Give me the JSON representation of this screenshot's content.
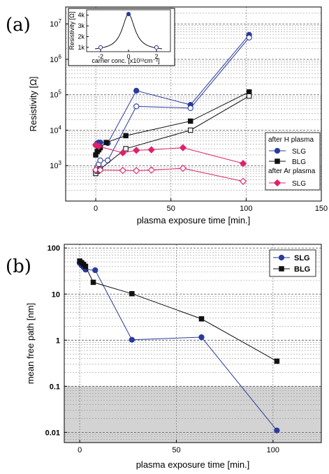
{
  "chart_data": [
    {
      "panel": "(a)",
      "type": "scatter",
      "xlabel": "plasma exposure time [min.]",
      "ylabel": "Resistivity [Ω]",
      "xlim": [
        -20,
        150
      ],
      "ylim": [
        100,
        30000000
      ],
      "yscale": "log",
      "xticks": [
        0,
        50,
        100,
        150
      ],
      "yticks": [
        {
          "v": 1000,
          "label": "10",
          "exp": "3"
        },
        {
          "v": 10000,
          "label": "10",
          "exp": "4"
        },
        {
          "v": 100000,
          "label": "10",
          "exp": "5"
        },
        {
          "v": 1000000,
          "label": "10",
          "exp": "6"
        },
        {
          "v": 10000000,
          "label": "10",
          "exp": "7"
        }
      ],
      "grid": true,
      "legend": {
        "position": "right",
        "group1_title": "after H plasma",
        "group2_title": "after Ar plasma",
        "entries": [
          {
            "label": "SLG",
            "color": "#2a3b9c",
            "marker": "circle"
          },
          {
            "label": "BLG",
            "color": "#111111",
            "marker": "square"
          },
          {
            "label": "SLG",
            "color": "#e0206a",
            "marker": "diamond"
          }
        ]
      },
      "series": [
        {
          "name": "SLG",
          "color": "#2a3b9c",
          "marker": "circle",
          "filled": true,
          "points": [
            [
              0,
              3800
            ],
            [
              1,
              4300
            ],
            [
              2,
              4500
            ],
            [
              3,
              4500
            ],
            [
              8,
              4300
            ],
            [
              27,
              130000
            ],
            [
              63,
              52000
            ],
            [
              102,
              4900000
            ]
          ]
        },
        {
          "name": "SLG",
          "color": "#2a3b9c",
          "marker": "circle",
          "filled": false,
          "points": [
            [
              0,
              700
            ],
            [
              1,
              900
            ],
            [
              2,
              1100
            ],
            [
              3,
              1400
            ],
            [
              8,
              1400
            ],
            [
              27,
              47000
            ],
            [
              63,
              42000
            ],
            [
              102,
              4100000
            ]
          ]
        },
        {
          "name": "BLG",
          "color": "#111111",
          "marker": "square",
          "filled": true,
          "points": [
            [
              0,
              2000
            ],
            [
              1,
              2500
            ],
            [
              2,
              2800
            ],
            [
              3,
              3200
            ],
            [
              7,
              4500
            ],
            [
              20,
              7000
            ],
            [
              63,
              18000
            ],
            [
              102,
              120000
            ]
          ]
        },
        {
          "name": "BLG",
          "color": "#111111",
          "marker": "square",
          "filled": false,
          "points": [
            [
              0,
              600
            ],
            [
              1,
              700
            ],
            [
              2,
              750
            ],
            [
              3,
              800
            ],
            [
              20,
              3000
            ],
            [
              63,
              10000
            ],
            [
              102,
              92000
            ]
          ]
        },
        {
          "name": "SLG",
          "color": "#e0206a",
          "marker": "diamond",
          "filled": true,
          "points": [
            [
              0,
              3800
            ],
            [
              2,
              3500
            ],
            [
              18,
              2300
            ],
            [
              27,
              2700
            ],
            [
              37,
              2800
            ],
            [
              58,
              3200
            ],
            [
              98,
              1150
            ]
          ]
        },
        {
          "name": "SLG",
          "color": "#e0206a",
          "marker": "diamond",
          "filled": false,
          "points": [
            [
              0,
              760
            ],
            [
              3,
              750
            ],
            [
              18,
              730
            ],
            [
              27,
              720
            ],
            [
              37,
              750
            ],
            [
              58,
              840
            ],
            [
              98,
              360
            ]
          ]
        }
      ],
      "inset": {
        "type": "line",
        "xlabel": "carrier conc. [x10¹²cm⁻²]",
        "ylabel": "Resistivity [Ω]",
        "xlim": [
          -3,
          3
        ],
        "ylim": [
          600,
          4500
        ],
        "xticks": [
          "-2",
          "0",
          "2"
        ],
        "yticks": [
          "1k",
          "2k",
          "3k",
          "4k"
        ],
        "curve_color": "#111111",
        "points": [
          {
            "x": -2,
            "y": 1000,
            "marker": "open-circle",
            "color": "#2a3b9c"
          },
          {
            "x": 0,
            "y": 4100,
            "marker": "filled-circle",
            "color": "#2a3b9c"
          },
          {
            "x": 2,
            "y": 1000,
            "marker": "open-circle",
            "color": "#2a3b9c"
          }
        ]
      }
    },
    {
      "panel": "(b)",
      "type": "line",
      "xlabel": "plasma exposure time [min.]",
      "ylabel": "mean free path [nm]",
      "xlim": [
        -8,
        125
      ],
      "ylim": [
        0.006,
        120
      ],
      "yscale": "log",
      "xticks": [
        0,
        50,
        100
      ],
      "yticks": [
        {
          "v": 0.01,
          "label": "0.01"
        },
        {
          "v": 0.1,
          "label": "0.1"
        },
        {
          "v": 1,
          "label": "1"
        },
        {
          "v": 10,
          "label": "10"
        },
        {
          "v": 100,
          "label": "100"
        }
      ],
      "grid": true,
      "shaded_region": {
        "y_from": 0.006,
        "y_to": 0.1,
        "color": "#d3d3d3"
      },
      "legend": {
        "position": "top-right",
        "entries": [
          {
            "label": "SLG",
            "color": "#2a3b9c",
            "marker": "circle"
          },
          {
            "label": "BLG",
            "color": "#111111",
            "marker": "square"
          }
        ]
      },
      "series": [
        {
          "name": "SLG",
          "color": "#2a3b9c",
          "marker": "circle",
          "points": [
            [
              0,
              47
            ],
            [
              1,
              42
            ],
            [
              2,
              38
            ],
            [
              3,
              34
            ],
            [
              8,
              33
            ],
            [
              27,
              1.02
            ],
            [
              63,
              1.16
            ],
            [
              102,
              0.011
            ]
          ]
        },
        {
          "name": "BLG",
          "color": "#111111",
          "marker": "square",
          "points": [
            [
              0,
              52
            ],
            [
              1,
              48
            ],
            [
              2,
              44
            ],
            [
              3,
              40
            ],
            [
              7,
              18
            ],
            [
              27,
              10.2
            ],
            [
              63,
              2.9
            ],
            [
              102,
              0.35
            ]
          ]
        }
      ]
    }
  ]
}
